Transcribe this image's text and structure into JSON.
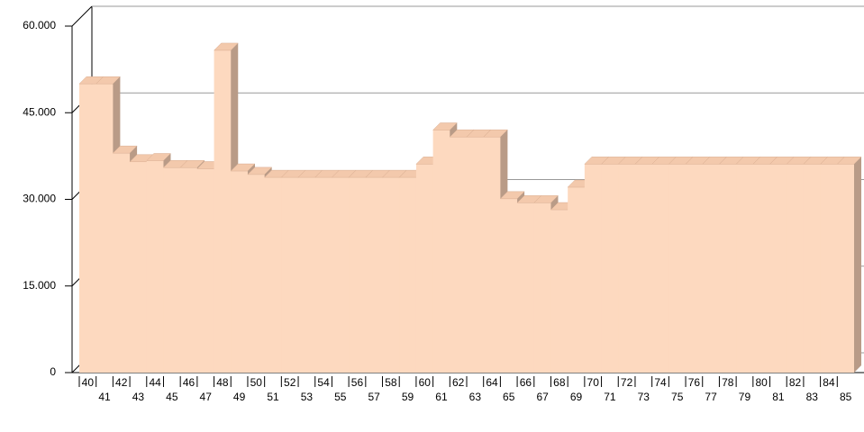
{
  "chart_data": {
    "type": "bar3d",
    "categories": [
      "40",
      "41",
      "42",
      "43",
      "44",
      "45",
      "46",
      "47",
      "48",
      "49",
      "50",
      "51",
      "52",
      "53",
      "54",
      "55",
      "56",
      "57",
      "58",
      "59",
      "60",
      "61",
      "62",
      "63",
      "64",
      "65",
      "66",
      "67",
      "68",
      "69",
      "70",
      "71",
      "72",
      "73",
      "74",
      "75",
      "76",
      "77",
      "78",
      "79",
      "80",
      "81",
      "82",
      "83",
      "84",
      "85"
    ],
    "values": [
      50000,
      50000,
      38000,
      36500,
      36700,
      35500,
      35500,
      35300,
      55800,
      34900,
      34300,
      33800,
      33800,
      33800,
      33800,
      33800,
      33800,
      33800,
      33800,
      33800,
      36100,
      42000,
      40800,
      40800,
      40800,
      30100,
      29400,
      29400,
      28200,
      32100,
      36100,
      36100,
      36100,
      36100,
      36100,
      36100,
      36100,
      36100,
      36100,
      36100,
      36100,
      36100,
      36100,
      36100,
      36100,
      36100
    ],
    "color": "#fdd9bf",
    "ylim": [
      0,
      60000
    ],
    "yticks": [
      0,
      {
        "value": 15000,
        "label": "15.000"
      },
      {
        "value": 30000,
        "label": "30.000"
      },
      {
        "value": 45000,
        "label": "45.000"
      },
      {
        "value": 60000,
        "label": "60.000"
      }
    ],
    "grid": true
  }
}
